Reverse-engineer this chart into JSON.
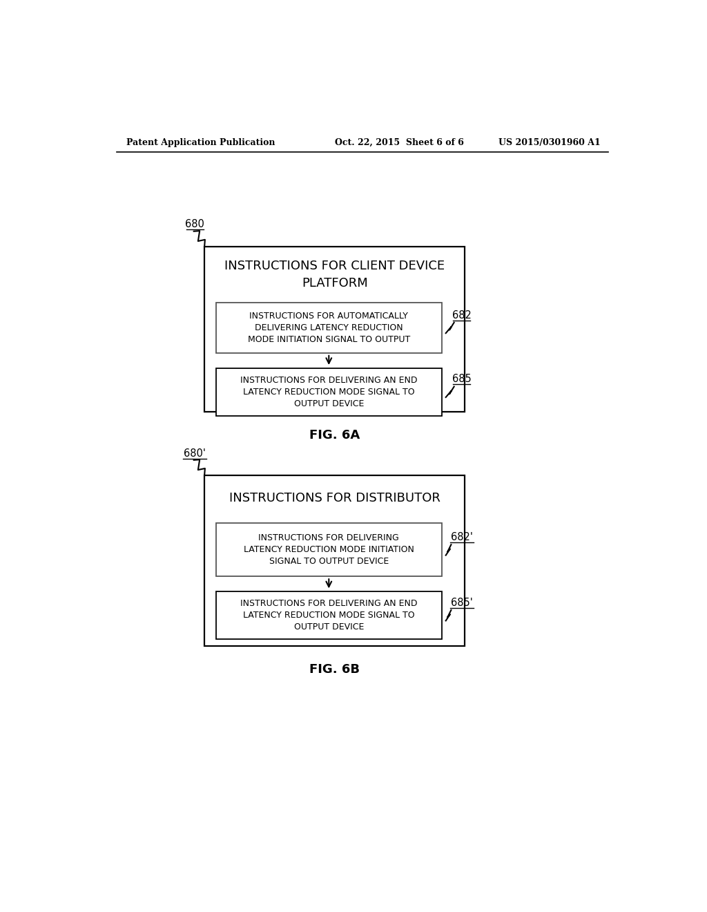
{
  "header_left": "Patent Application Publication",
  "header_center": "Oct. 22, 2015  Sheet 6 of 6",
  "header_right": "US 2015/0301960 A1",
  "fig6a": {
    "label": "FIG. 6A",
    "outer_box_label": "680",
    "outer_title": "INSTRUCTIONS FOR CLIENT DEVICE\nPLATFORM",
    "box1_label": "682",
    "box1_text": "INSTRUCTIONS FOR AUTOMATICALLY\nDELIVERING LATENCY REDUCTION\nMODE INITIATION SIGNAL TO OUTPUT",
    "box2_label": "685",
    "box2_text": "INSTRUCTIONS FOR DELIVERING AN END\nLATENCY REDUCTION MODE SIGNAL TO\nOUTPUT DEVICE"
  },
  "fig6b": {
    "label": "FIG. 6B",
    "outer_box_label": "680'",
    "outer_title": "INSTRUCTIONS FOR DISTRIBUTOR",
    "box1_label": "682'",
    "box1_text": "INSTRUCTIONS FOR DELIVERING\nLATENCY REDUCTION MODE INITIATION\nSIGNAL TO OUTPUT DEVICE",
    "box2_label": "685'",
    "box2_text": "INSTRUCTIONS FOR DELIVERING AN END\nLATENCY REDUCTION MODE SIGNAL TO\nOUTPUT DEVICE"
  },
  "bg_color": "#ffffff",
  "text_color": "#000000"
}
